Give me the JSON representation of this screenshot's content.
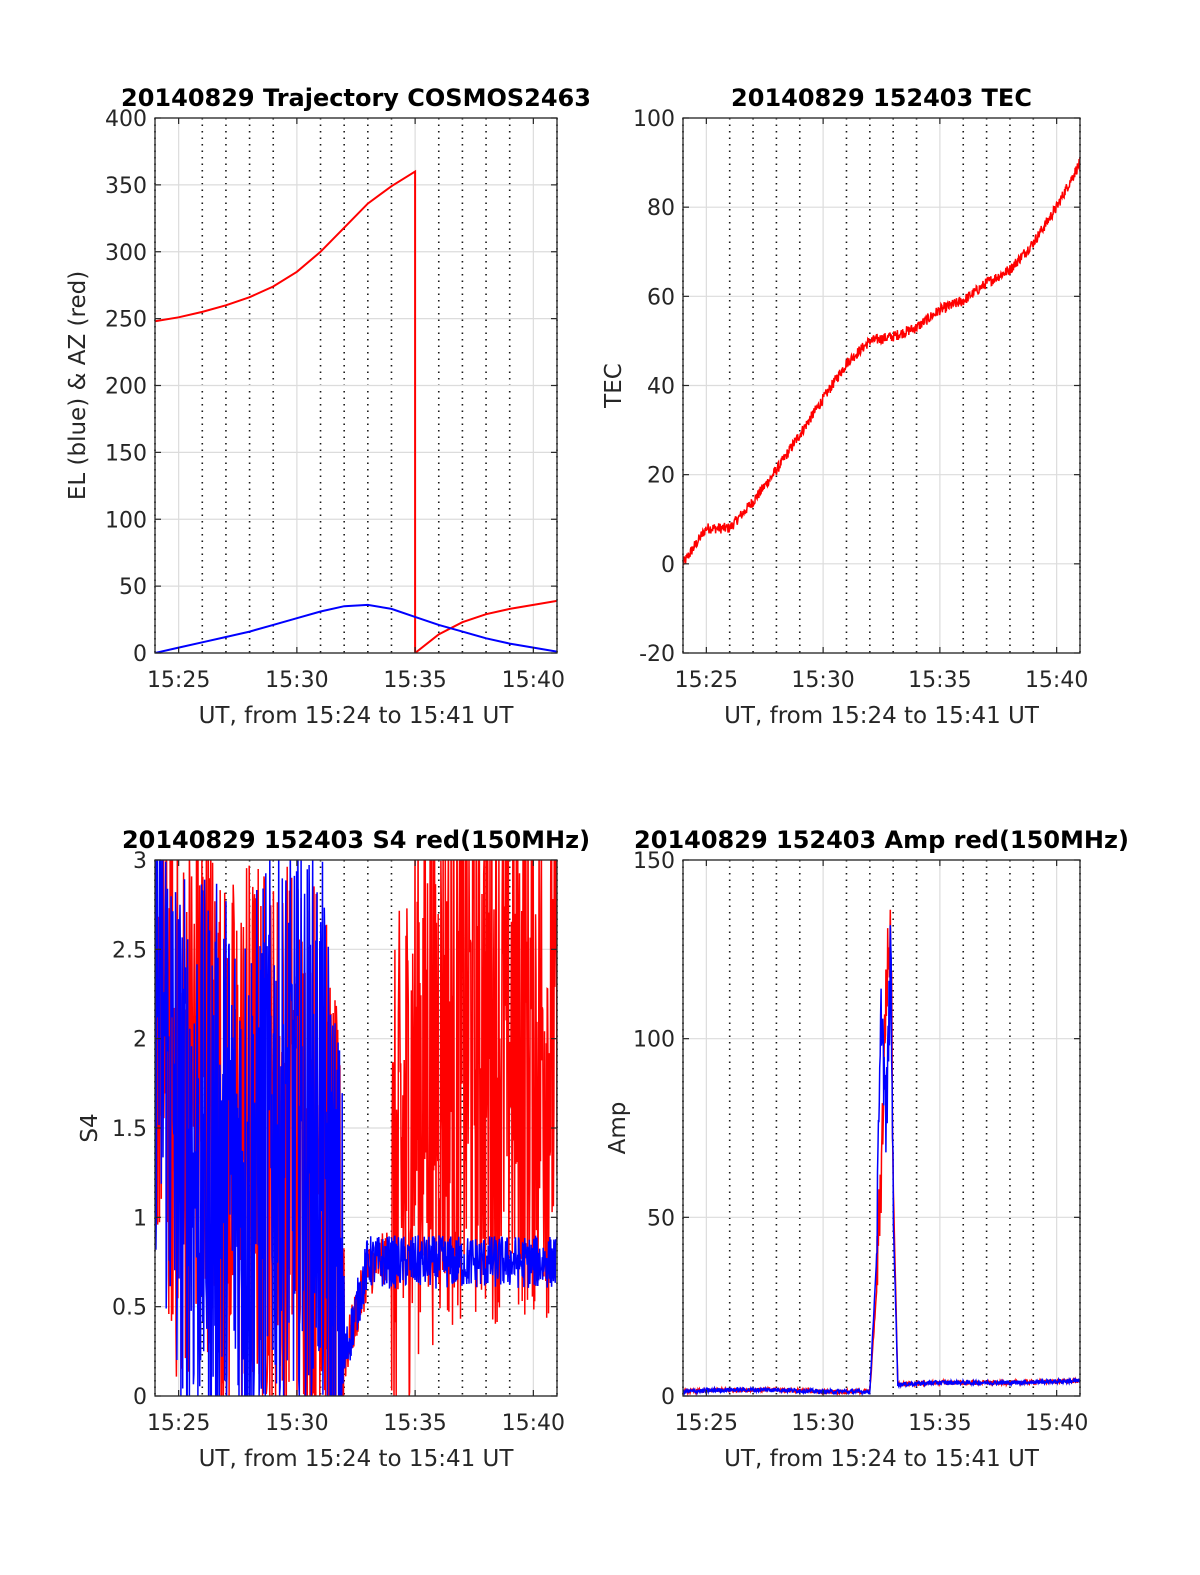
{
  "chart_data": [
    {
      "type": "line",
      "title": "20140829 Trajectory COSMOS2463",
      "xlabel": "UT, from 15:24 to 15:41 UT",
      "ylabel": "EL (blue) & AZ (red)",
      "xlim": [
        "15:24",
        "15:41"
      ],
      "ylim": [
        0,
        400
      ],
      "xticks": [
        "15:25",
        "15:30",
        "15:35",
        "15:40"
      ],
      "yticks": [
        0,
        50,
        100,
        150,
        200,
        250,
        300,
        350,
        400
      ],
      "grid": true,
      "minor_grid_x": "dotted, every 1 minute",
      "series": [
        {
          "color": "#ff0000",
          "x": [
            "15:24",
            "15:25",
            "15:26",
            "15:27",
            "15:28",
            "15:29",
            "15:30",
            "15:31",
            "15:32",
            "15:33",
            "15:34",
            "15:35",
            "15:35",
            "15:36",
            "15:37",
            "15:38",
            "15:39",
            "15:40",
            "15:41"
          ],
          "values": [
            248,
            251,
            255,
            260,
            266,
            274,
            285,
            300,
            318,
            336,
            349,
            360,
            0,
            14,
            23,
            29,
            33,
            36,
            39
          ]
        },
        {
          "color": "#0000ff",
          "x": [
            "15:24",
            "15:25",
            "15:26",
            "15:27",
            "15:28",
            "15:29",
            "15:30",
            "15:31",
            "15:32",
            "15:33",
            "15:34",
            "15:35",
            "15:36",
            "15:37",
            "15:38",
            "15:39",
            "15:40",
            "15:41"
          ],
          "values": [
            0,
            4,
            8,
            12,
            16,
            21,
            26,
            31,
            35,
            36,
            33,
            27,
            21,
            16,
            11,
            7,
            4,
            1
          ]
        }
      ]
    },
    {
      "type": "line",
      "title": "20140829 152403 TEC",
      "xlabel": "UT, from 15:24 to 15:41 UT",
      "ylabel": "TEC",
      "xlim": [
        "15:24",
        "15:41"
      ],
      "ylim": [
        -20,
        100
      ],
      "xticks": [
        "15:25",
        "15:30",
        "15:35",
        "15:40"
      ],
      "yticks": [
        -20,
        0,
        20,
        40,
        60,
        80,
        100
      ],
      "grid": true,
      "series": [
        {
          "color": "#ff0000",
          "x": [
            "15:24",
            "15:25",
            "15:26",
            "15:27",
            "15:28",
            "15:29",
            "15:30",
            "15:31",
            "15:32",
            "15:33",
            "15:34",
            "15:35",
            "15:36",
            "15:37",
            "15:38",
            "15:39",
            "15:40",
            "15:41"
          ],
          "values": [
            0,
            8,
            8,
            14,
            21,
            29,
            37,
            45,
            50,
            51,
            53,
            57,
            59,
            63,
            66,
            72,
            80,
            90
          ]
        }
      ]
    },
    {
      "type": "line",
      "title": "20140829 152403 S4 red(150MHz)",
      "xlabel": "UT, from 15:24 to 15:41 UT",
      "ylabel": "S4",
      "xlim": [
        "15:24",
        "15:41"
      ],
      "ylim": [
        0,
        3
      ],
      "xticks": [
        "15:25",
        "15:30",
        "15:35",
        "15:40"
      ],
      "yticks": [
        0,
        0.5,
        1,
        1.5,
        2,
        2.5,
        3
      ],
      "grid": true,
      "series": [
        {
          "color": "#ff0000",
          "x": [
            "15:24",
            "15:25",
            "15:26",
            "15:27",
            "15:28",
            "15:29",
            "15:30",
            "15:31",
            "15:32",
            "15:33",
            "15:34",
            "15:35",
            "15:36",
            "15:37",
            "15:38",
            "15:39",
            "15:40",
            "15:41"
          ],
          "values": [
            2.5,
            1.5,
            2.0,
            1.3,
            1.5,
            1.4,
            1.5,
            1.4,
            0.2,
            0.7,
            0.8,
            1.8,
            1.9,
            2.0,
            2.0,
            2.0,
            2.0,
            2.0
          ]
        },
        {
          "color": "#0000ff",
          "x": [
            "15:24",
            "15:25",
            "15:26",
            "15:27",
            "15:28",
            "15:29",
            "15:30",
            "15:31",
            "15:32",
            "15:33",
            "15:34",
            "15:35",
            "15:36",
            "15:37",
            "15:38",
            "15:39",
            "15:40",
            "15:41"
          ],
          "values": [
            2.4,
            1.4,
            1.3,
            1.3,
            1.2,
            1.5,
            1.5,
            1.5,
            0.2,
            0.75,
            0.75,
            0.75,
            0.75,
            0.75,
            0.75,
            0.75,
            0.75,
            0.75
          ]
        }
      ]
    },
    {
      "type": "line",
      "title": "20140829 152403 Amp red(150MHz)",
      "xlabel": "UT, from 15:24 to 15:41 UT",
      "ylabel": "Amp",
      "xlim": [
        "15:24",
        "15:41"
      ],
      "ylim": [
        0,
        150
      ],
      "xticks": [
        "15:25",
        "15:30",
        "15:35",
        "15:40"
      ],
      "yticks": [
        0,
        50,
        100,
        150
      ],
      "grid": true,
      "series": [
        {
          "color": "#ff0000",
          "x": [
            "15:24",
            "15:26",
            "15:28",
            "15:30",
            "15:32",
            "15:32.3",
            "15:32.5",
            "15:32.7",
            "15:32.9",
            "15:33",
            "15:33.2",
            "15:35",
            "15:38",
            "15:41"
          ],
          "values": [
            1,
            1.5,
            1.5,
            1,
            1,
            30,
            60,
            110,
            125,
            60,
            3,
            3.5,
            3.5,
            4
          ]
        },
        {
          "color": "#0000ff",
          "x": [
            "15:24",
            "15:26",
            "15:28",
            "15:30",
            "15:32",
            "15:32.3",
            "15:32.5",
            "15:32.7",
            "15:32.9",
            "15:33",
            "15:33.2",
            "15:35",
            "15:38",
            "15:41"
          ],
          "values": [
            1,
            1.5,
            1.5,
            1,
            1,
            40,
            105,
            70,
            120,
            50,
            3,
            3.5,
            3.5,
            4
          ]
        }
      ]
    }
  ]
}
